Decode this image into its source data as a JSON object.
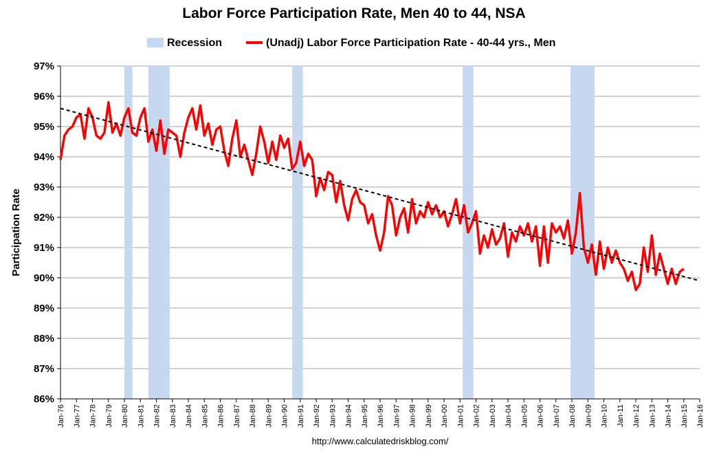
{
  "chart_data": {
    "type": "line",
    "title": "Labor Force Participation Rate, Men 40 to 44, NSA",
    "ylabel": "Participation Rate",
    "xlabel": "",
    "ylim": [
      86,
      97
    ],
    "xlim": [
      "1976-01",
      "2016-01"
    ],
    "y_tick_labels": [
      "86%",
      "87%",
      "88%",
      "89%",
      "90%",
      "91%",
      "92%",
      "93%",
      "94%",
      "95%",
      "96%",
      "97%"
    ],
    "x_tick_labels": [
      "Jan-76",
      "Jan-77",
      "Jan-78",
      "Jan-79",
      "Jan-80",
      "Jan-81",
      "Jan-82",
      "Jan-83",
      "Jan-84",
      "Jan-85",
      "Jan-86",
      "Jan-87",
      "Jan-88",
      "Jan-89",
      "Jan-90",
      "Jan-91",
      "Jan-92",
      "Jan-93",
      "Jan-94",
      "Jan-95",
      "Jan-96",
      "Jan-97",
      "Jan-98",
      "Jan-99",
      "Jan-00",
      "Jan-01",
      "Jan-02",
      "Jan-03",
      "Jan-04",
      "Jan-05",
      "Jan-06",
      "Jan-07",
      "Jan-08",
      "Jan-09",
      "Jan-10",
      "Jan-11",
      "Jan-12",
      "Jan-13",
      "Jan-14",
      "Jan-15",
      "Jan-16"
    ],
    "legend": {
      "placement": "top",
      "entries": [
        "Recession",
        "(Unadj) Labor Force Participation Rate - 40-44 yrs., Men"
      ]
    },
    "grid": {
      "horizontal": true,
      "vertical": false
    },
    "recessions": [
      [
        "1980-01",
        "1980-07"
      ],
      [
        "1981-07",
        "1982-11"
      ],
      [
        "1990-07",
        "1991-03"
      ],
      [
        "2001-03",
        "2001-11"
      ],
      [
        "2007-12",
        "2009-06"
      ]
    ],
    "trend": {
      "style": "dashed",
      "start": [
        "1976-01",
        95.6
      ],
      "end": [
        "2016-01",
        89.9
      ]
    },
    "series": [
      {
        "name": "(Unadj) Labor Force Participation Rate - 40-44 yrs., Men",
        "points": [
          [
            "1976-01",
            93.9
          ],
          [
            "1976-04",
            94.7
          ],
          [
            "1976-07",
            94.9
          ],
          [
            "1976-10",
            95.0
          ],
          [
            "1977-01",
            95.3
          ],
          [
            "1977-04",
            95.4
          ],
          [
            "1977-07",
            94.6
          ],
          [
            "1977-10",
            95.6
          ],
          [
            "1978-01",
            95.3
          ],
          [
            "1978-04",
            94.7
          ],
          [
            "1978-07",
            94.6
          ],
          [
            "1978-10",
            94.8
          ],
          [
            "1979-01",
            95.8
          ],
          [
            "1979-04",
            94.8
          ],
          [
            "1979-07",
            95.1
          ],
          [
            "1979-10",
            94.7
          ],
          [
            "1980-01",
            95.3
          ],
          [
            "1980-04",
            95.6
          ],
          [
            "1980-07",
            94.8
          ],
          [
            "1980-10",
            94.7
          ],
          [
            "1981-01",
            95.3
          ],
          [
            "1981-04",
            95.6
          ],
          [
            "1981-07",
            94.5
          ],
          [
            "1981-10",
            94.9
          ],
          [
            "1982-01",
            94.2
          ],
          [
            "1982-04",
            95.2
          ],
          [
            "1982-07",
            94.1
          ],
          [
            "1982-10",
            94.9
          ],
          [
            "1983-01",
            94.8
          ],
          [
            "1983-04",
            94.7
          ],
          [
            "1983-07",
            94.0
          ],
          [
            "1983-10",
            94.8
          ],
          [
            "1984-01",
            95.3
          ],
          [
            "1984-04",
            95.6
          ],
          [
            "1984-07",
            94.9
          ],
          [
            "1984-10",
            95.7
          ],
          [
            "1985-01",
            94.7
          ],
          [
            "1985-04",
            95.1
          ],
          [
            "1985-07",
            94.4
          ],
          [
            "1985-10",
            94.9
          ],
          [
            "1986-01",
            95.0
          ],
          [
            "1986-04",
            94.2
          ],
          [
            "1986-07",
            93.7
          ],
          [
            "1986-10",
            94.6
          ],
          [
            "1987-01",
            95.2
          ],
          [
            "1987-04",
            94.0
          ],
          [
            "1987-07",
            94.4
          ],
          [
            "1987-10",
            93.9
          ],
          [
            "1988-01",
            93.4
          ],
          [
            "1988-04",
            94.1
          ],
          [
            "1988-07",
            95.0
          ],
          [
            "1988-10",
            94.5
          ],
          [
            "1989-01",
            93.8
          ],
          [
            "1989-04",
            94.5
          ],
          [
            "1989-07",
            93.9
          ],
          [
            "1989-10",
            94.7
          ],
          [
            "1990-01",
            94.3
          ],
          [
            "1990-04",
            94.6
          ],
          [
            "1990-07",
            93.6
          ],
          [
            "1990-10",
            93.8
          ],
          [
            "1991-01",
            94.5
          ],
          [
            "1991-04",
            93.7
          ],
          [
            "1991-07",
            94.1
          ],
          [
            "1991-10",
            93.9
          ],
          [
            "1992-01",
            92.7
          ],
          [
            "1992-04",
            93.3
          ],
          [
            "1992-07",
            92.9
          ],
          [
            "1992-10",
            93.5
          ],
          [
            "1993-01",
            93.4
          ],
          [
            "1993-04",
            92.5
          ],
          [
            "1993-07",
            93.2
          ],
          [
            "1993-10",
            92.4
          ],
          [
            "1994-01",
            91.9
          ],
          [
            "1994-04",
            92.6
          ],
          [
            "1994-07",
            92.9
          ],
          [
            "1994-10",
            92.5
          ],
          [
            "1995-01",
            92.4
          ],
          [
            "1995-04",
            91.8
          ],
          [
            "1995-07",
            92.1
          ],
          [
            "1995-10",
            91.4
          ],
          [
            "1996-01",
            90.9
          ],
          [
            "1996-04",
            91.5
          ],
          [
            "1996-07",
            92.7
          ],
          [
            "1996-10",
            92.4
          ],
          [
            "1997-01",
            91.4
          ],
          [
            "1997-04",
            92.0
          ],
          [
            "1997-07",
            92.3
          ],
          [
            "1997-10",
            91.5
          ],
          [
            "1998-01",
            92.6
          ],
          [
            "1998-04",
            91.8
          ],
          [
            "1998-07",
            92.2
          ],
          [
            "1998-10",
            92.0
          ],
          [
            "1999-01",
            92.5
          ],
          [
            "1999-04",
            92.1
          ],
          [
            "1999-07",
            92.4
          ],
          [
            "1999-10",
            92.0
          ],
          [
            "2000-01",
            92.2
          ],
          [
            "2000-04",
            91.7
          ],
          [
            "2000-07",
            92.1
          ],
          [
            "2000-10",
            92.6
          ],
          [
            "2001-01",
            91.8
          ],
          [
            "2001-04",
            92.4
          ],
          [
            "2001-07",
            91.5
          ],
          [
            "2001-10",
            91.8
          ],
          [
            "2002-01",
            92.2
          ],
          [
            "2002-04",
            90.8
          ],
          [
            "2002-07",
            91.4
          ],
          [
            "2002-10",
            91.0
          ],
          [
            "2003-01",
            91.6
          ],
          [
            "2003-04",
            91.1
          ],
          [
            "2003-07",
            91.3
          ],
          [
            "2003-10",
            91.8
          ],
          [
            "2004-01",
            90.7
          ],
          [
            "2004-04",
            91.5
          ],
          [
            "2004-07",
            91.2
          ],
          [
            "2004-10",
            91.7
          ],
          [
            "2005-01",
            91.4
          ],
          [
            "2005-04",
            91.8
          ],
          [
            "2005-07",
            91.2
          ],
          [
            "2005-10",
            91.7
          ],
          [
            "2006-01",
            90.4
          ],
          [
            "2006-04",
            91.7
          ],
          [
            "2006-07",
            90.5
          ],
          [
            "2006-10",
            91.8
          ],
          [
            "2007-01",
            91.5
          ],
          [
            "2007-04",
            91.7
          ],
          [
            "2007-07",
            91.3
          ],
          [
            "2007-10",
            91.9
          ],
          [
            "2008-01",
            90.8
          ],
          [
            "2008-04",
            91.5
          ],
          [
            "2008-07",
            92.8
          ],
          [
            "2008-10",
            91.0
          ],
          [
            "2009-01",
            90.5
          ],
          [
            "2009-04",
            91.1
          ],
          [
            "2009-07",
            90.1
          ],
          [
            "2009-10",
            91.2
          ],
          [
            "2010-01",
            90.3
          ],
          [
            "2010-04",
            91.0
          ],
          [
            "2010-07",
            90.5
          ],
          [
            "2010-10",
            90.9
          ],
          [
            "2011-01",
            90.5
          ],
          [
            "2011-04",
            90.3
          ],
          [
            "2011-07",
            89.9
          ],
          [
            "2011-10",
            90.2
          ],
          [
            "2012-01",
            89.6
          ],
          [
            "2012-04",
            89.8
          ],
          [
            "2012-07",
            91.0
          ],
          [
            "2012-10",
            90.2
          ],
          [
            "2013-01",
            91.4
          ],
          [
            "2013-04",
            90.1
          ],
          [
            "2013-07",
            90.8
          ],
          [
            "2013-10",
            90.3
          ],
          [
            "2014-01",
            89.8
          ],
          [
            "2014-04",
            90.3
          ],
          [
            "2014-07",
            89.8
          ],
          [
            "2014-10",
            90.2
          ],
          [
            "2015-01",
            90.3
          ]
        ]
      }
    ],
    "colors": {
      "series": "#ff0000",
      "recession": "#c6d9f1",
      "trend": "#000000",
      "grid": "#a6a6a6"
    },
    "source": "http://www.calculatedriskblog.com/"
  }
}
